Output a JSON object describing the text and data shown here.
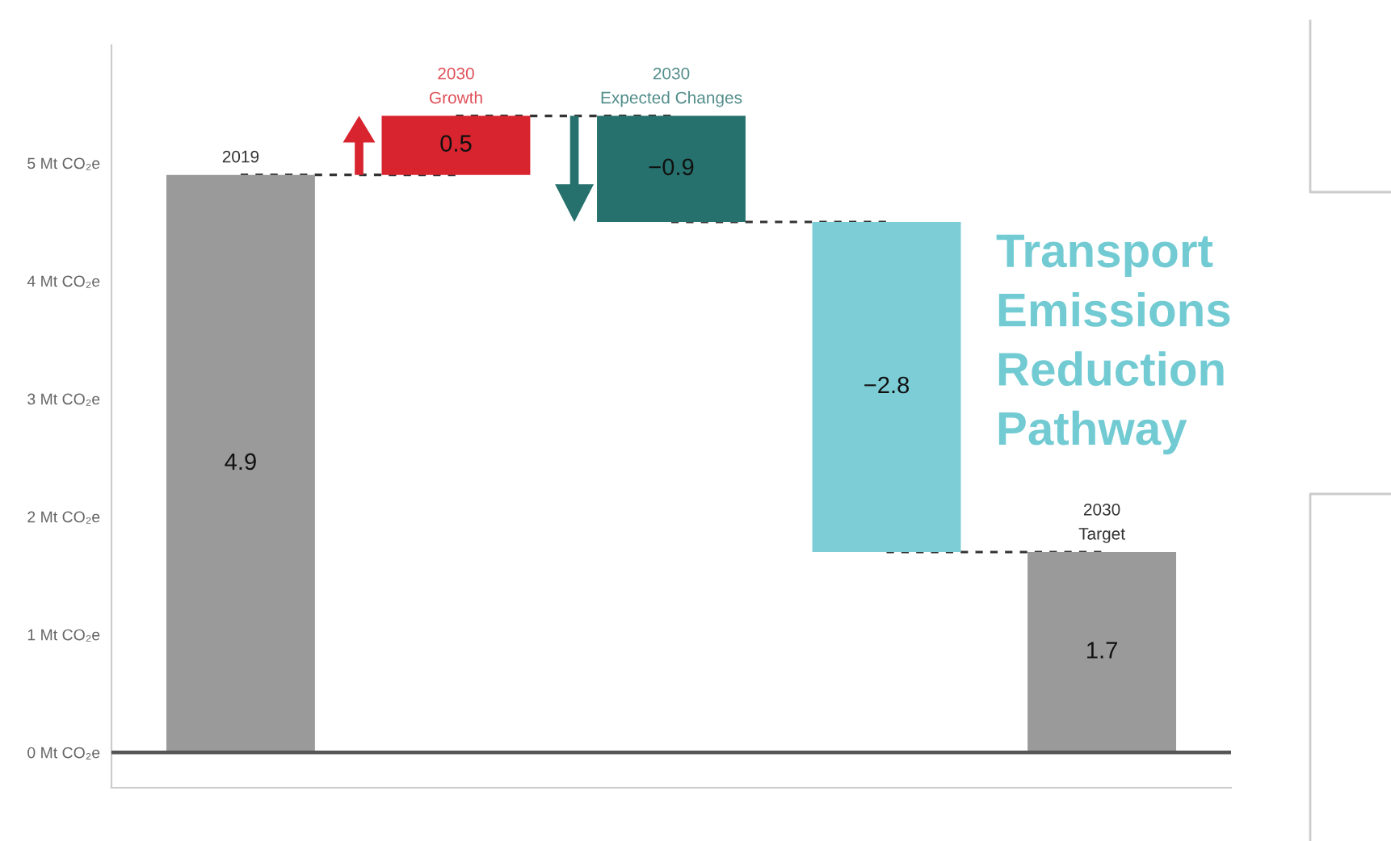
{
  "chart_data": {
    "type": "bar",
    "title": "Transport\nEmissions\nReduction\nPathway",
    "categories": [
      "2019",
      "2030\nGrowth",
      "2030\nExpected Changes",
      null,
      "2030\nTarget"
    ],
    "series": [
      {
        "values": [
          4.9,
          0.5,
          -0.9,
          -2.8,
          1.7
        ],
        "base": [
          0,
          4.9,
          5.4,
          4.5,
          0
        ],
        "colors": [
          "#9a9a9a",
          "#d7242f",
          "#26716d",
          "#7ccdd5",
          "#9a9a9a"
        ],
        "value_labels": [
          "4.9",
          "0.5",
          "−0.9",
          "−2.8",
          "1.7"
        ]
      },
      {
        "type": "line",
        "values": [
          4.9,
          4.9,
          null,
          null,
          null
        ],
        "color": "#333333",
        "line_style": "dashed"
      },
      {
        "type": "line",
        "values": [
          null,
          5.4,
          5.4,
          null,
          null
        ],
        "color": "#333333",
        "line_style": "dashed"
      },
      {
        "type": "line",
        "values": [
          null,
          null,
          4.5,
          4.5,
          null
        ],
        "color": "#333333",
        "line_style": "dashed"
      },
      {
        "type": "line",
        "values": [
          null,
          null,
          null,
          1.7,
          1.7
        ],
        "color": "#333333",
        "line_style": "dashed"
      }
    ],
    "ylim": [
      -0.3,
      6.0
    ],
    "yticks": [
      {
        "value": 0,
        "label": "0 Mt CO₂e"
      },
      {
        "value": 1,
        "label": "1 Mt CO₂e"
      },
      {
        "value": 2,
        "label": "2 Mt CO₂e"
      },
      {
        "value": 3,
        "label": "3 Mt CO₂e"
      },
      {
        "value": 4,
        "label": "4 Mt CO₂e"
      },
      {
        "value": 5,
        "label": "5 Mt CO₂e"
      }
    ],
    "ref_lines": [
      {
        "axis": "y",
        "value": 0,
        "color": "#555555"
      }
    ]
  }
}
